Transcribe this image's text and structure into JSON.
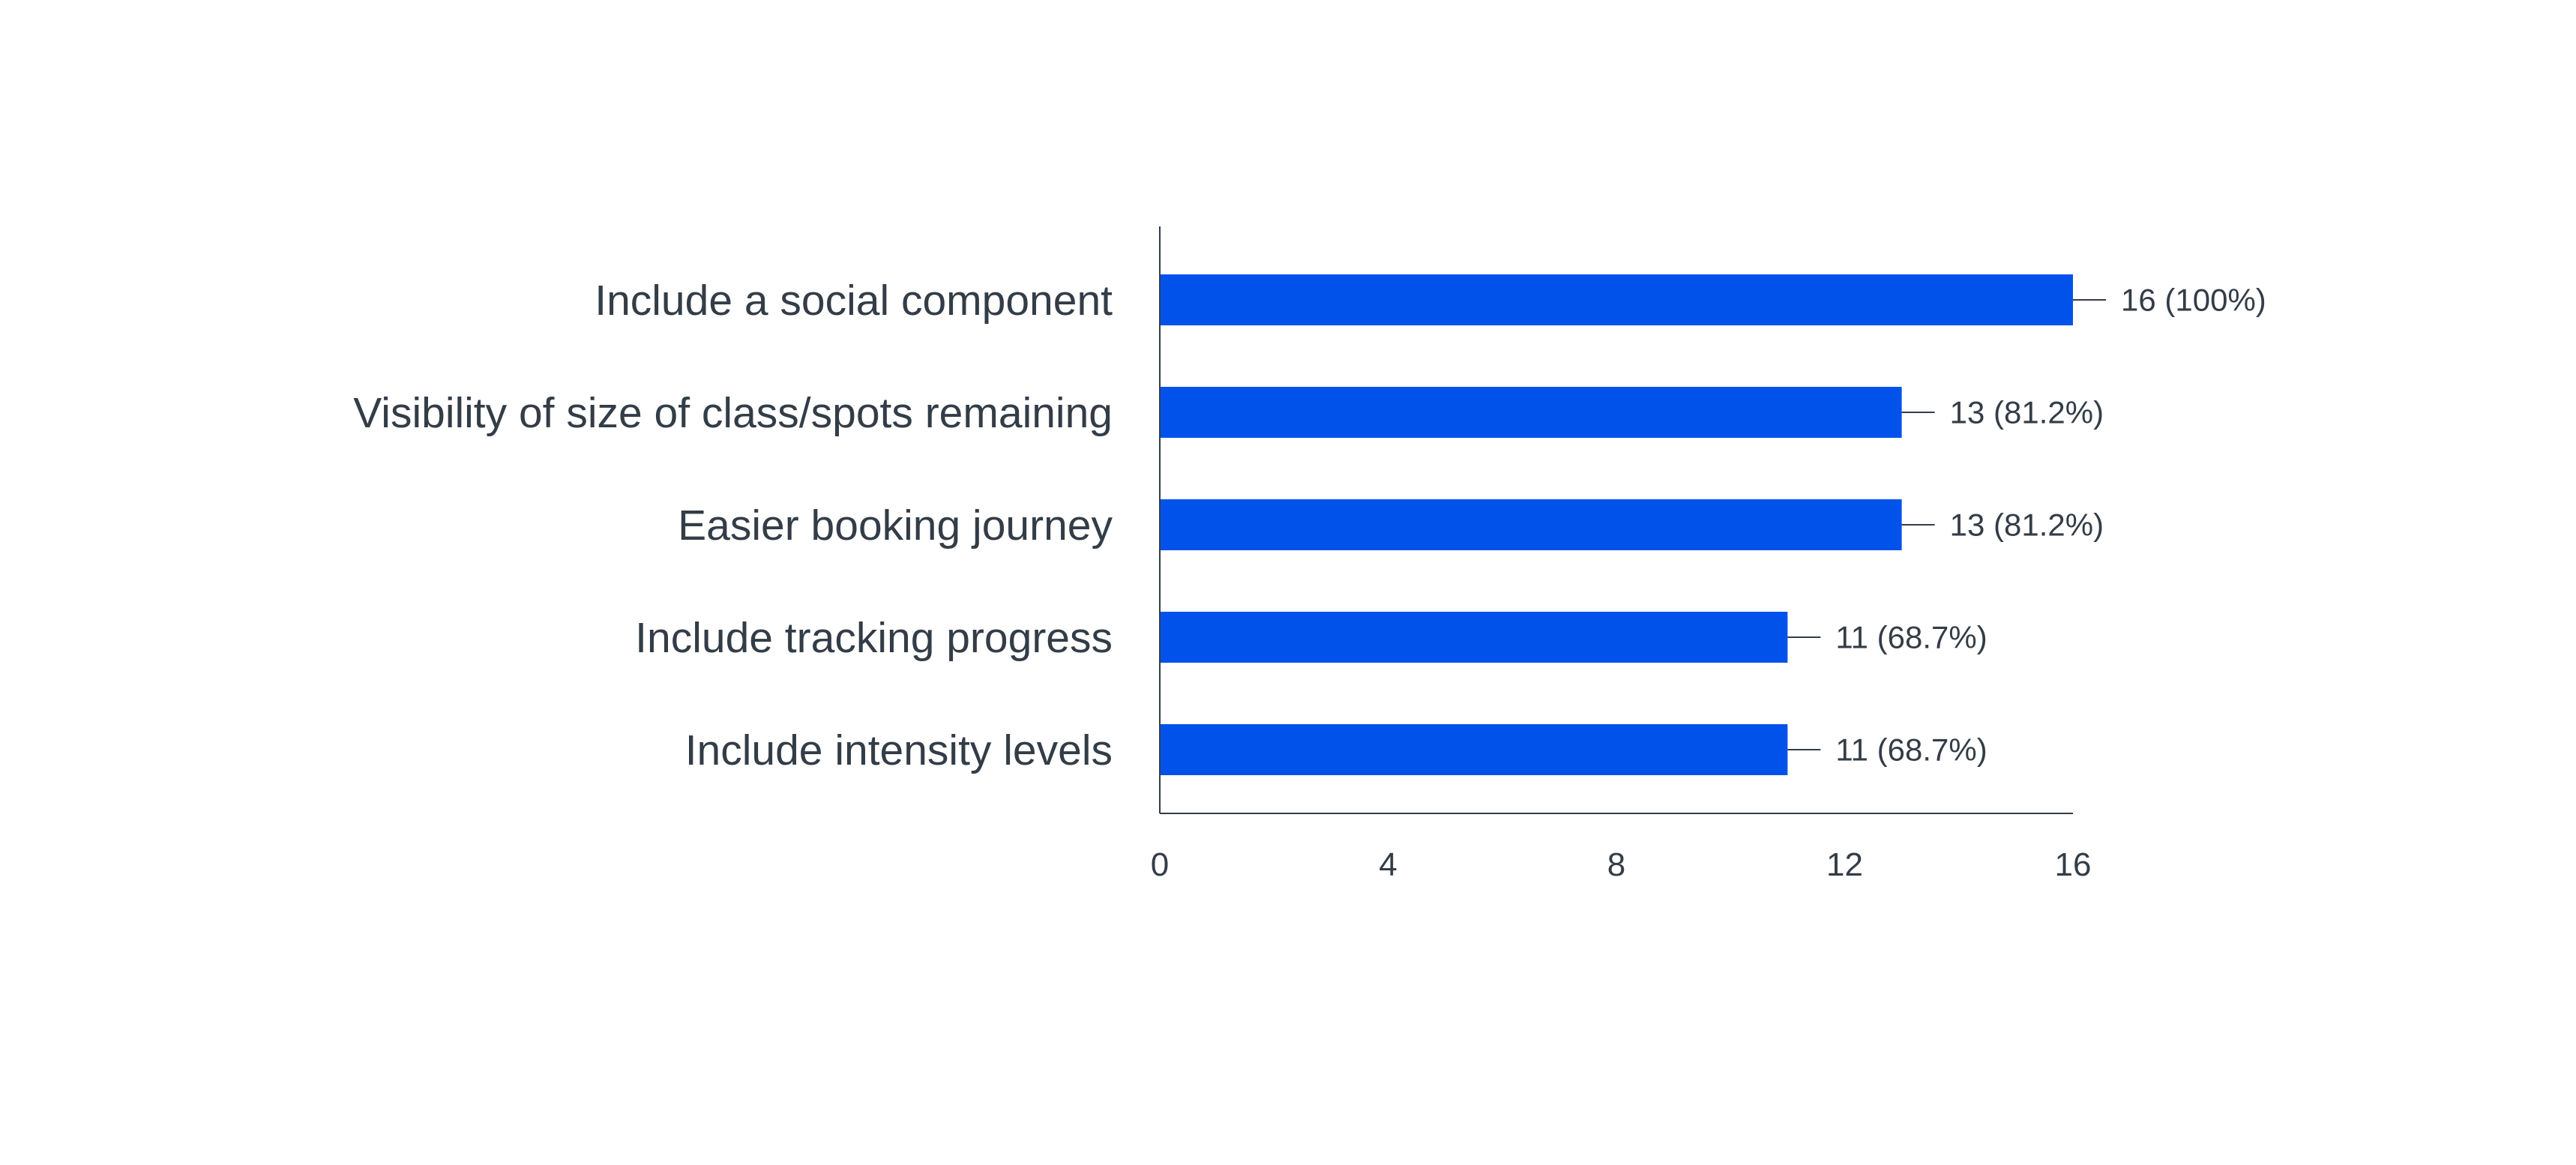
{
  "chart_data": {
    "type": "bar",
    "orientation": "horizontal",
    "categories": [
      "Include a social component",
      "Visibility of size of class/spots remaining",
      "Easier booking journey",
      "Include tracking progress ",
      "Include intensity levels"
    ],
    "values": [
      16,
      13,
      13,
      11,
      11
    ],
    "data_labels": [
      "16 (100%)",
      "13 (81.2%)",
      "13 (81.2%)",
      "11 (68.7%)",
      "11 (68.7%)"
    ],
    "xlim": [
      0,
      16
    ],
    "xticks": [
      0,
      4,
      8,
      12,
      16
    ],
    "xtick_labels": [
      "0",
      "4",
      "8",
      "12",
      "16"
    ],
    "grid": false,
    "legend": "none",
    "bar_color": "#0052eb",
    "axis_color": "#333d47",
    "text_color": "#333d47"
  }
}
